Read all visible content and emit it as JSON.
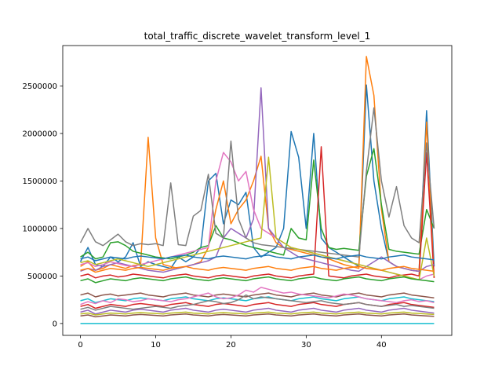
{
  "chart_data": {
    "type": "line",
    "title": "total_traffic_discrete_wavelet_transform_level_1",
    "xlabel": "",
    "ylabel": "",
    "xlim": [
      -2.35,
      49.35
    ],
    "ylim": [
      -125000,
      2925000
    ],
    "xticks": [
      0,
      10,
      20,
      30,
      40
    ],
    "yticks": [
      0,
      500000,
      1000000,
      1500000,
      2000000,
      2500000
    ],
    "grid": false,
    "legend": false,
    "palette": [
      "#1f77b4",
      "#ff7f0e",
      "#2ca02c",
      "#d62728",
      "#9467bd",
      "#8c564b",
      "#e377c2",
      "#7f7f7f",
      "#bcbd22",
      "#17becf"
    ],
    "x": [
      0,
      1,
      2,
      3,
      4,
      5,
      6,
      7,
      8,
      9,
      10,
      11,
      12,
      13,
      14,
      15,
      16,
      17,
      18,
      19,
      20,
      21,
      22,
      23,
      24,
      25,
      26,
      27,
      28,
      29,
      30,
      31,
      32,
      33,
      34,
      35,
      36,
      37,
      38,
      39,
      40,
      41,
      42,
      43,
      44,
      45,
      46,
      47
    ],
    "series": [
      {
        "values": [
          650000,
          800000,
          620000,
          600000,
          700000,
          650000,
          700000,
          850000,
          600000,
          650000,
          620000,
          600000,
          580000,
          700000,
          650000,
          700000,
          800000,
          1500000,
          1580000,
          1050000,
          1300000,
          1250000,
          1380000,
          800000,
          700000,
          750000,
          800000,
          1000000,
          2020000,
          1750000,
          1000000,
          2000000,
          900000,
          800000,
          750000,
          700000,
          650000,
          600000,
          2510000,
          1500000,
          1000000,
          650000,
          600000,
          580000,
          560000,
          550000,
          2240000,
          600000
        ]
      },
      {
        "values": [
          600000,
          650000,
          560000,
          580000,
          620000,
          600000,
          580000,
          610000,
          620000,
          1960000,
          900000,
          620000,
          600000,
          580000,
          600000,
          620000,
          650000,
          800000,
          1200000,
          1500000,
          1050000,
          1200000,
          1300000,
          1500000,
          1760000,
          1000000,
          850000,
          800000,
          780000,
          760000,
          740000,
          720000,
          700000,
          680000,
          650000,
          620000,
          600000,
          580000,
          2810000,
          2400000,
          1200000,
          650000,
          600000,
          580000,
          560000,
          550000,
          2120000,
          480000
        ]
      },
      {
        "values": [
          700000,
          750000,
          680000,
          700000,
          850000,
          860000,
          820000,
          760000,
          740000,
          720000,
          700000,
          690000,
          680000,
          700000,
          720000,
          750000,
          800000,
          820000,
          1030000,
          900000,
          880000,
          850000,
          820000,
          800000,
          780000,
          760000,
          740000,
          720000,
          1000000,
          900000,
          880000,
          1720000,
          1000000,
          800000,
          780000,
          790000,
          780000,
          770000,
          1550000,
          1840000,
          1250000,
          780000,
          760000,
          750000,
          740000,
          730000,
          1200000,
          1000000
        ]
      },
      {
        "values": [
          500000,
          520000,
          480000,
          500000,
          510000,
          490000,
          500000,
          520000,
          510000,
          500000,
          490000,
          480000,
          500000,
          510000,
          520000,
          500000,
          490000,
          480000,
          500000,
          510000,
          500000,
          490000,
          480000,
          500000,
          510000,
          520000,
          500000,
          490000,
          480000,
          500000,
          510000,
          520000,
          1860000,
          500000,
          490000,
          480000,
          500000,
          510000,
          520000,
          500000,
          490000,
          480000,
          500000,
          510000,
          520000,
          500000,
          1800000,
          480000
        ]
      },
      {
        "values": [
          550000,
          580000,
          560000,
          600000,
          620000,
          640000,
          620000,
          600000,
          580000,
          560000,
          550000,
          540000,
          560000,
          580000,
          600000,
          620000,
          640000,
          660000,
          700000,
          900000,
          1000000,
          950000,
          900000,
          1100000,
          2480000,
          1000000,
          900000,
          800000,
          750000,
          700000,
          680000,
          660000,
          640000,
          620000,
          600000,
          580000,
          560000,
          550000,
          600000,
          650000,
          700000,
          650000,
          600000,
          580000,
          560000,
          550000,
          600000,
          620000
        ]
      },
      {
        "values": [
          300000,
          320000,
          280000,
          300000,
          310000,
          290000,
          300000,
          310000,
          320000,
          300000,
          290000,
          280000,
          300000,
          310000,
          320000,
          300000,
          290000,
          280000,
          300000,
          310000,
          300000,
          290000,
          280000,
          300000,
          310000,
          320000,
          300000,
          290000,
          280000,
          300000,
          310000,
          320000,
          300000,
          290000,
          280000,
          300000,
          310000,
          320000,
          300000,
          290000,
          280000,
          300000,
          310000,
          320000,
          300000,
          290000,
          280000,
          270000
        ]
      },
      {
        "values": [
          620000,
          640000,
          600000,
          620000,
          650000,
          630000,
          610000,
          600000,
          620000,
          640000,
          660000,
          680000,
          700000,
          720000,
          740000,
          760000,
          780000,
          800000,
          1500000,
          1800000,
          1700000,
          1500000,
          1600000,
          1200000,
          1000000,
          950000,
          900000,
          850000,
          800000,
          780000,
          760000,
          740000,
          720000,
          700000,
          680000,
          660000,
          640000,
          620000,
          600000,
          580000,
          560000,
          540000,
          520000,
          500000,
          480000,
          460000,
          500000,
          520000
        ]
      },
      {
        "values": [
          850000,
          1000000,
          860000,
          820000,
          880000,
          940000,
          860000,
          820000,
          840000,
          830000,
          840000,
          820000,
          1480000,
          830000,
          820000,
          1130000,
          1190000,
          1570000,
          950000,
          900000,
          1920000,
          1100000,
          900000,
          850000,
          830000,
          820000,
          810000,
          800000,
          790000,
          780000,
          770000,
          760000,
          750000,
          740000,
          730000,
          720000,
          710000,
          700000,
          1600000,
          2270000,
          1500000,
          1120000,
          1440000,
          1030000,
          900000,
          850000,
          1900000,
          1000000
        ]
      },
      {
        "values": [
          640000,
          660000,
          620000,
          640000,
          660000,
          680000,
          660000,
          640000,
          620000,
          600000,
          620000,
          640000,
          660000,
          680000,
          700000,
          720000,
          740000,
          760000,
          780000,
          800000,
          820000,
          840000,
          860000,
          880000,
          900000,
          1750000,
          900000,
          850000,
          800000,
          780000,
          760000,
          740000,
          720000,
          700000,
          680000,
          660000,
          640000,
          620000,
          600000,
          580000,
          560000,
          540000,
          520000,
          500000,
          480000,
          460000,
          900000,
          500000
        ]
      },
      {
        "values": [
          240000,
          260000,
          220000,
          240000,
          260000,
          250000,
          240000,
          260000,
          270000,
          260000,
          250000,
          240000,
          260000,
          270000,
          280000,
          260000,
          250000,
          240000,
          260000,
          270000,
          260000,
          250000,
          240000,
          260000,
          270000,
          280000,
          260000,
          250000,
          240000,
          260000,
          270000,
          280000,
          260000,
          250000,
          240000,
          260000,
          270000,
          280000,
          260000,
          250000,
          240000,
          260000,
          270000,
          280000,
          260000,
          250000,
          240000,
          230000
        ]
      },
      {
        "values": [
          680000,
          700000,
          660000,
          680000,
          700000,
          690000,
          680000,
          700000,
          710000,
          700000,
          690000,
          680000,
          700000,
          710000,
          720000,
          700000,
          690000,
          680000,
          700000,
          710000,
          700000,
          690000,
          680000,
          700000,
          710000,
          720000,
          700000,
          690000,
          680000,
          700000,
          710000,
          720000,
          700000,
          690000,
          680000,
          700000,
          710000,
          720000,
          700000,
          690000,
          680000,
          700000,
          710000,
          720000,
          700000,
          690000,
          680000,
          670000
        ]
      },
      {
        "values": [
          560000,
          580000,
          540000,
          560000,
          580000,
          570000,
          560000,
          580000,
          590000,
          580000,
          570000,
          560000,
          580000,
          590000,
          600000,
          580000,
          570000,
          560000,
          580000,
          590000,
          580000,
          570000,
          560000,
          580000,
          590000,
          600000,
          580000,
          570000,
          560000,
          580000,
          590000,
          600000,
          580000,
          570000,
          560000,
          580000,
          590000,
          600000,
          580000,
          570000,
          560000,
          580000,
          590000,
          600000,
          580000,
          570000,
          560000,
          550000
        ]
      },
      {
        "values": [
          450000,
          470000,
          430000,
          450000,
          470000,
          460000,
          450000,
          470000,
          480000,
          470000,
          460000,
          450000,
          470000,
          480000,
          490000,
          470000,
          460000,
          450000,
          470000,
          480000,
          470000,
          460000,
          450000,
          470000,
          480000,
          490000,
          470000,
          460000,
          450000,
          470000,
          480000,
          490000,
          470000,
          460000,
          450000,
          470000,
          480000,
          490000,
          470000,
          460000,
          450000,
          470000,
          480000,
          490000,
          470000,
          460000,
          450000,
          440000
        ]
      },
      {
        "values": [
          180000,
          200000,
          160000,
          180000,
          200000,
          190000,
          180000,
          200000,
          210000,
          200000,
          190000,
          180000,
          200000,
          210000,
          220000,
          200000,
          190000,
          180000,
          200000,
          210000,
          200000,
          190000,
          180000,
          200000,
          210000,
          220000,
          200000,
          190000,
          180000,
          200000,
          210000,
          220000,
          200000,
          190000,
          180000,
          200000,
          210000,
          220000,
          200000,
          190000,
          180000,
          200000,
          210000,
          220000,
          200000,
          190000,
          180000,
          170000
        ]
      },
      {
        "values": [
          120000,
          140000,
          100000,
          120000,
          140000,
          130000,
          120000,
          140000,
          150000,
          140000,
          130000,
          120000,
          140000,
          150000,
          160000,
          140000,
          130000,
          120000,
          140000,
          150000,
          140000,
          130000,
          120000,
          140000,
          150000,
          160000,
          140000,
          130000,
          120000,
          140000,
          150000,
          160000,
          140000,
          130000,
          120000,
          140000,
          150000,
          160000,
          140000,
          130000,
          120000,
          140000,
          150000,
          160000,
          140000,
          130000,
          120000,
          110000
        ]
      },
      {
        "values": [
          80000,
          90000,
          70000,
          80000,
          90000,
          85000,
          80000,
          90000,
          95000,
          90000,
          85000,
          80000,
          90000,
          95000,
          100000,
          90000,
          85000,
          80000,
          90000,
          95000,
          90000,
          85000,
          80000,
          90000,
          95000,
          100000,
          90000,
          85000,
          80000,
          90000,
          95000,
          100000,
          90000,
          85000,
          80000,
          90000,
          95000,
          100000,
          90000,
          85000,
          80000,
          90000,
          95000,
          100000,
          90000,
          85000,
          80000,
          75000
        ]
      },
      {
        "values": [
          200000,
          230000,
          210000,
          240000,
          220000,
          260000,
          250000,
          230000,
          240000,
          260000,
          250000,
          240000,
          230000,
          250000,
          260000,
          280000,
          300000,
          320000,
          280000,
          260000,
          270000,
          300000,
          350000,
          330000,
          380000,
          360000,
          340000,
          320000,
          330000,
          310000,
          300000,
          290000,
          280000,
          270000,
          290000,
          310000,
          300000,
          280000,
          260000,
          250000,
          240000,
          230000,
          220000,
          240000,
          250000,
          230000,
          240000,
          220000
        ]
      },
      {
        "values": [
          150000,
          170000,
          140000,
          160000,
          180000,
          170000,
          160000,
          150000,
          160000,
          170000,
          180000,
          170000,
          160000,
          180000,
          190000,
          200000,
          220000,
          240000,
          230000,
          210000,
          220000,
          250000,
          300000,
          260000,
          280000,
          270000,
          260000,
          250000,
          240000,
          230000,
          220000,
          230000,
          240000,
          220000,
          210000,
          200000,
          210000,
          220000,
          200000,
          190000,
          180000,
          190000,
          200000,
          180000,
          190000,
          180000,
          170000,
          160000
        ]
      },
      {
        "values": [
          100000,
          110000,
          90000,
          100000,
          110000,
          105000,
          100000,
          110000,
          115000,
          110000,
          105000,
          100000,
          110000,
          115000,
          120000,
          110000,
          105000,
          100000,
          110000,
          115000,
          110000,
          105000,
          100000,
          110000,
          115000,
          120000,
          110000,
          105000,
          100000,
          110000,
          115000,
          120000,
          110000,
          105000,
          100000,
          110000,
          115000,
          120000,
          110000,
          105000,
          100000,
          110000,
          115000,
          120000,
          110000,
          105000,
          100000,
          95000
        ]
      },
      {
        "values": [
          0,
          0,
          0,
          0,
          0,
          0,
          0,
          0,
          0,
          0,
          0,
          0,
          0,
          0,
          0,
          0,
          0,
          0,
          0,
          0,
          0,
          0,
          0,
          0,
          0,
          0,
          0,
          0,
          0,
          0,
          0,
          0,
          0,
          0,
          0,
          0,
          0,
          0,
          0,
          0,
          0,
          0,
          0,
          0,
          0,
          0,
          0,
          0
        ]
      }
    ]
  }
}
